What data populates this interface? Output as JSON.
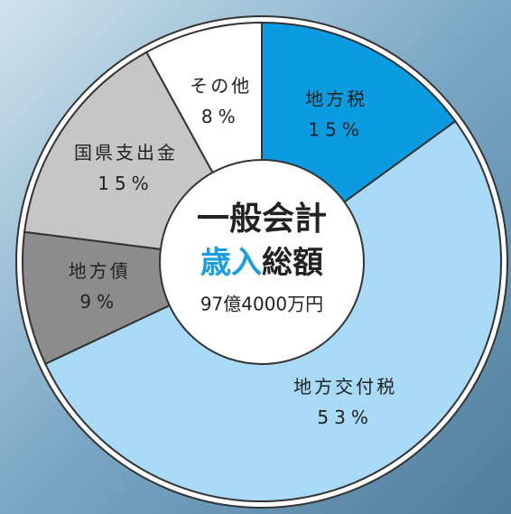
{
  "chart_data": {
    "type": "pie",
    "categories": [
      "地方税",
      "地方交付税",
      "地方債",
      "国県支出金",
      "その他"
    ],
    "values": [
      15,
      53,
      9,
      15,
      8
    ],
    "value_labels": [
      "15%",
      "53%",
      "9%",
      "15%",
      "8%"
    ],
    "colors": [
      "#0a9be0",
      "#a8daf5",
      "#8c8c8c",
      "#c6c6c6",
      "#ffffff"
    ],
    "center_title": "一般会計",
    "center_subtitle_highlight": "歳入",
    "center_subtitle": "総額",
    "center_total": "97億4000万円"
  }
}
